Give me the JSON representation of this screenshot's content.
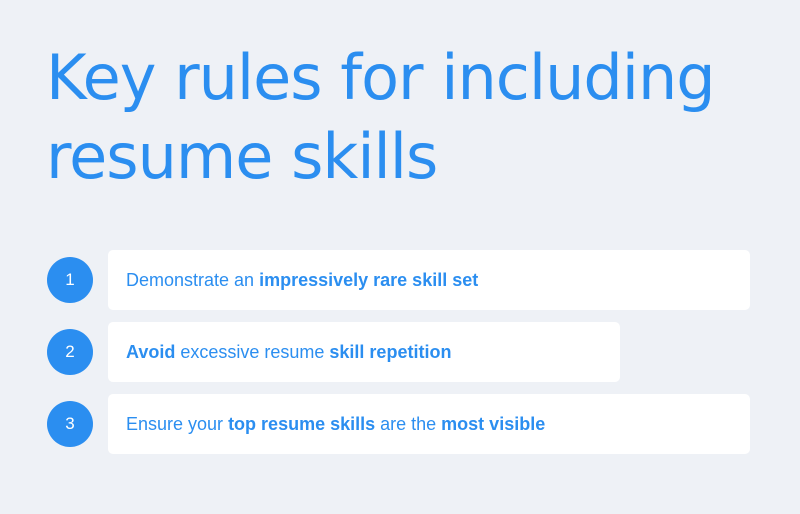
{
  "title": "Key rules for including resume skills",
  "colors": {
    "background": "#eef1f6",
    "accent": "#2b8ef0",
    "card": "#ffffff"
  },
  "rules": [
    {
      "number": "1",
      "parts": [
        "Demonstrate an ",
        "impressively rare skill set"
      ]
    },
    {
      "number": "2",
      "parts": [
        "Avoid",
        " excessive resume ",
        "skill repetition"
      ]
    },
    {
      "number": "3",
      "parts": [
        "Ensure your ",
        "top resume skills",
        " are the ",
        "most visible"
      ]
    }
  ]
}
